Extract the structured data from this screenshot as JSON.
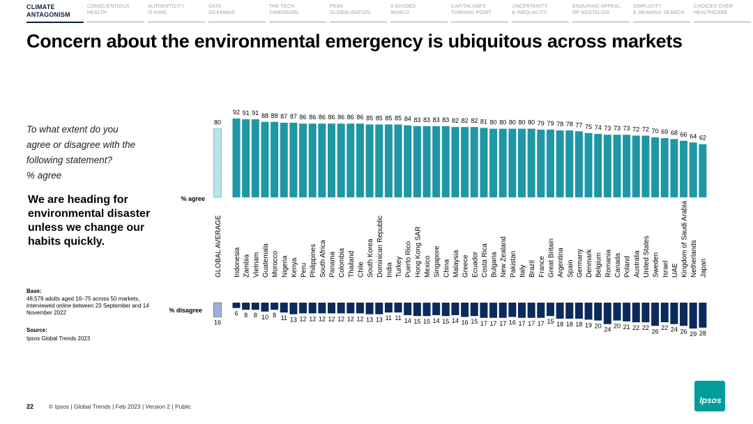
{
  "nav": [
    [
      "CLIMATE",
      "ANTAGONISM"
    ],
    [
      "CONSCIENTIOUS",
      "HEALTH"
    ],
    [
      "AUTHENTICITY",
      "IS KING"
    ],
    [
      "DATA",
      "DILEMMAS"
    ],
    [
      "THE TECH",
      "DIMENSION"
    ],
    [
      "PEAK",
      "GLOBALISATION"
    ],
    [
      "A DIVIDED",
      "WORLD"
    ],
    [
      "CAPITALISM'S",
      "TURNING POINT"
    ],
    [
      "UNCERTAINTY",
      "& INEQUALITY"
    ],
    [
      "ENDURING APPEAL",
      "OF NOSTALGIA"
    ],
    [
      "SIMPLICITY",
      "& MEANING SEARCH"
    ],
    [
      "CHOICES OVER",
      "HEALTHCARE"
    ]
  ],
  "title": "Concern about the environmental emergency is ubiquitous across markets",
  "question": [
    "To what extent do you",
    "agree or disagree with the",
    "following statement?",
    "% agree"
  ],
  "statement": [
    "We are heading for",
    "environmental disaster",
    "unless we change our",
    "habits quickly."
  ],
  "base": {
    "heading": "Base:",
    "text": [
      "48,579 adults aged 16–75 across 50 markets,",
      "interviewed online between 23 September and 14",
      "November 2022"
    ]
  },
  "source": {
    "heading": "Source:",
    "text": "Ipsos Global Trends 2023"
  },
  "footer": {
    "page": "22",
    "text": "© Ipsos | Global Trends | Feb 2023 | Version 2 | Public",
    "logo": "Ipsos"
  },
  "chart_data": {
    "type": "bar",
    "categories": [
      "GLOBAL AVERAGE",
      "Indonesia",
      "Zambia",
      "Vietnam",
      "Guatemala",
      "Morocco",
      "Nigeria",
      "Kenya",
      "Peru",
      "Philippines",
      "South Africa",
      "Panama",
      "Colombia",
      "Thailand",
      "Chile",
      "South Korea",
      "Dominican Republic",
      "India",
      "Turkey",
      "Puerto Rico",
      "Hong Kong SAR",
      "Mexico",
      "Singapore",
      "China",
      "Malaysia",
      "Greece",
      "Ecuador",
      "Costa Rica",
      "Bulgaria",
      "New Zealand",
      "Pakistan",
      "Italy",
      "Brazil",
      "France",
      "Great Britain",
      "Argentina",
      "Spain",
      "Germany",
      "Denmark",
      "Belgium",
      "Romania",
      "Canada",
      "Poland",
      "Australia",
      "United States",
      "Sweden",
      "Israel",
      "UAE",
      "Kingdom of Saudi Arabia",
      "Netherlands",
      "Japan"
    ],
    "series": [
      {
        "name": "% agree",
        "color": "#1f97a6",
        "average_color": "#b9e3e8",
        "values": [
          80,
          92,
          91,
          91,
          88,
          88,
          87,
          87,
          86,
          86,
          86,
          86,
          86,
          86,
          86,
          85,
          85,
          85,
          85,
          84,
          83,
          83,
          83,
          83,
          82,
          82,
          82,
          81,
          80,
          80,
          80,
          80,
          80,
          79,
          79,
          78,
          78,
          77,
          75,
          74,
          73,
          73,
          73,
          72,
          72,
          70,
          69,
          68,
          66,
          64,
          62
        ]
      },
      {
        "name": "% disagree",
        "color": "#0c2a5c",
        "average_color": "#9fb0dd",
        "values": [
          16,
          6,
          8,
          8,
          10,
          8,
          11,
          13,
          12,
          12,
          12,
          12,
          12,
          12,
          12,
          13,
          13,
          11,
          11,
          14,
          15,
          15,
          14,
          15,
          14,
          16,
          15,
          17,
          17,
          17,
          16,
          17,
          17,
          17,
          15,
          18,
          18,
          18,
          19,
          20,
          24,
          20,
          21,
          22,
          22,
          26,
          22,
          24,
          26,
          29,
          28
        ]
      }
    ]
  }
}
